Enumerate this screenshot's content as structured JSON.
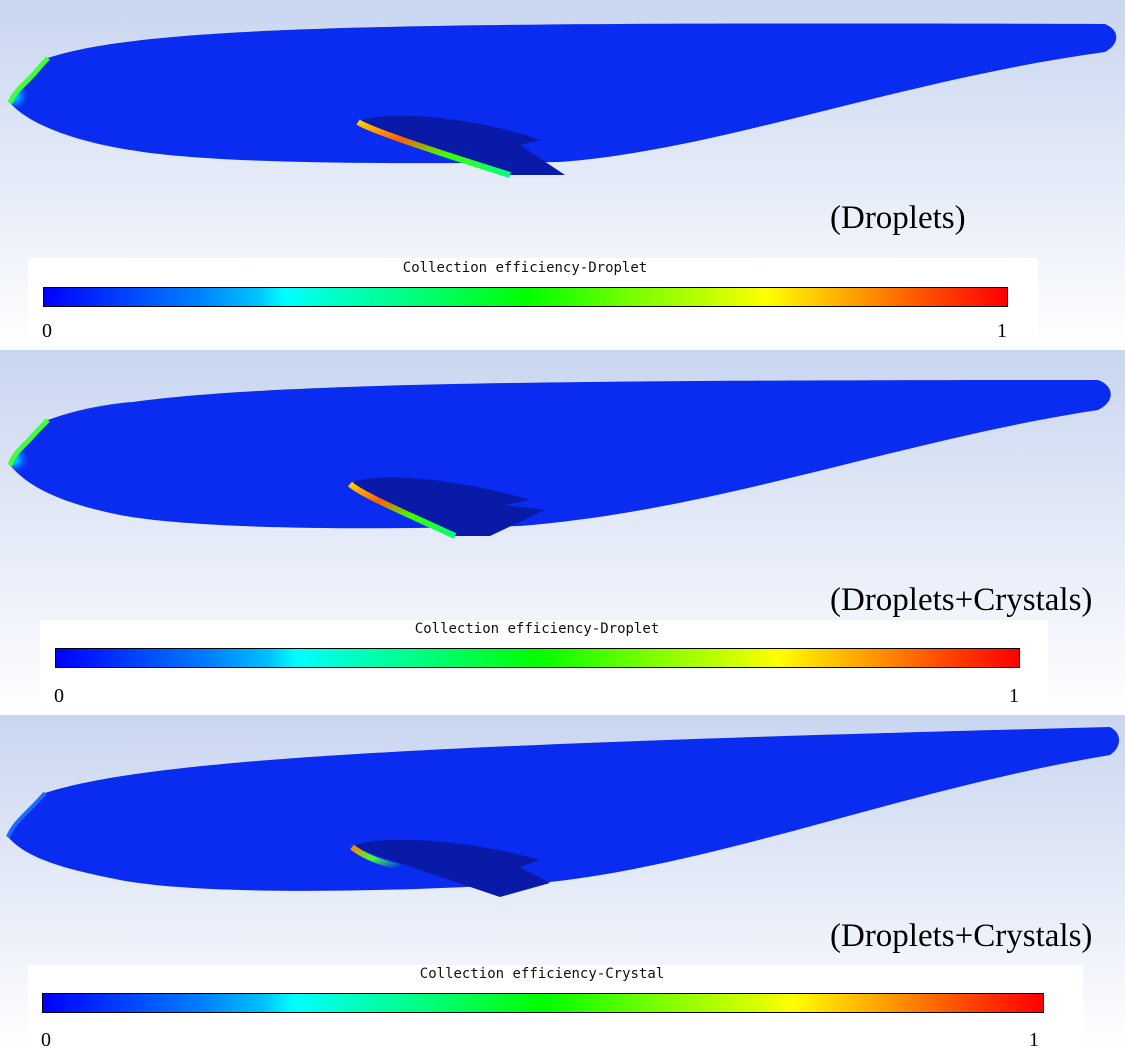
{
  "panels": [
    {
      "case_label": "(Droplets)",
      "colorbar": {
        "title": "Collection efficiency-Droplet",
        "min_label": "0",
        "max_label": "1"
      },
      "nose_highlight": true
    },
    {
      "case_label": "(Droplets+Crystals)",
      "colorbar": {
        "title": "Collection efficiency-Droplet",
        "min_label": "0",
        "max_label": "1"
      },
      "nose_highlight": true
    },
    {
      "case_label": "(Droplets+Crystals)",
      "colorbar": {
        "title": "Collection efficiency-Crystal",
        "min_label": "0",
        "max_label": "1"
      },
      "nose_highlight": false
    }
  ],
  "colors": {
    "fuselage": "#0a2cf0",
    "wing": "#0a1aa8",
    "background_top": "#c9d6f0",
    "background_bottom": "#ffffff"
  }
}
